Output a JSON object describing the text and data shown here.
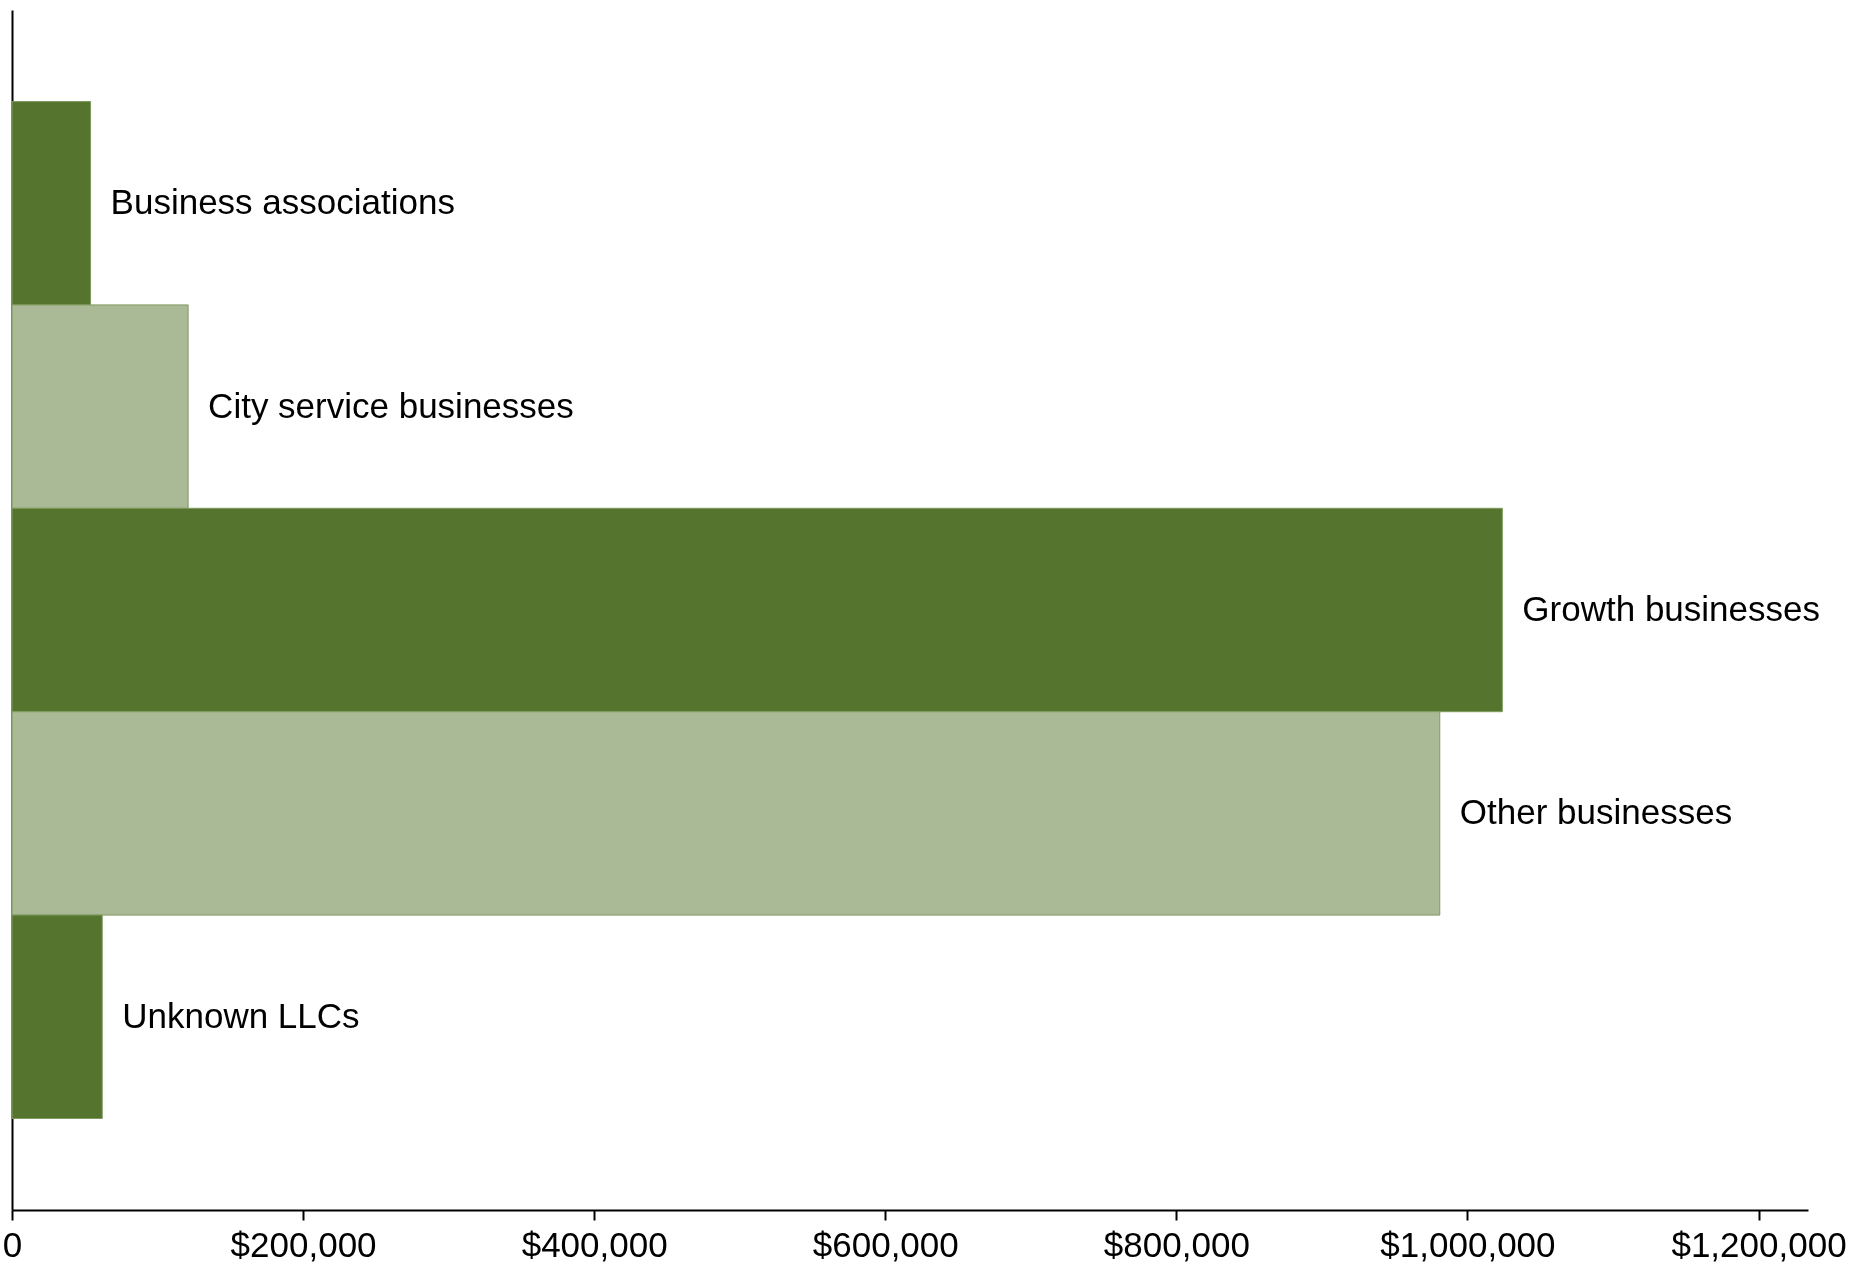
{
  "chart_data": {
    "type": "bar",
    "orientation": "horizontal",
    "tick_labels": "x",
    "categories": [
      "Business associations",
      "City service businesses",
      "Growth businesses",
      "Other businesses",
      "Unknown LLCs"
    ],
    "values": [
      54000,
      121000,
      1024000,
      981000,
      62000
    ],
    "colors": [
      "#55752f",
      "#abba96",
      "#55752f",
      "#abba96",
      "#55752f"
    ],
    "xlim": [
      0,
      1234000
    ],
    "xticks": [
      0,
      {
        "value": 200000,
        "label": "$200,000"
      },
      {
        "value": 400000,
        "label": "$400,000"
      },
      {
        "value": 600000,
        "label": "$600,000"
      },
      {
        "value": 800000,
        "label": "$800,000"
      },
      {
        "value": 1000000,
        "label": "$1,000,000"
      },
      {
        "value": 1200000,
        "label": "$1,200,000"
      }
    ]
  }
}
